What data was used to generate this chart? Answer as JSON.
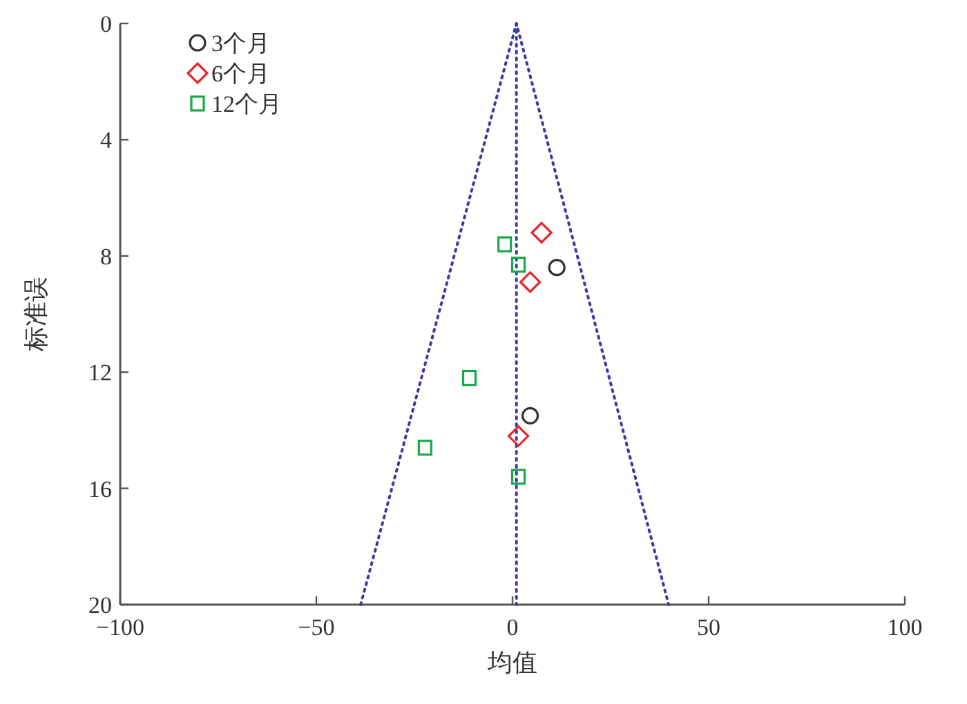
{
  "chart_data": {
    "type": "scatter",
    "xlabel": "均值",
    "ylabel": "标准误",
    "xlim": [
      -100,
      100
    ],
    "xticks": [
      {
        "value": -100,
        "label": "−100"
      },
      {
        "value": -50,
        "label": "−50"
      },
      0,
      50,
      100
    ],
    "ylim": [
      20,
      0
    ],
    "yticks": [
      0,
      4,
      8,
      12,
      16,
      20
    ],
    "grid": false,
    "legend": "top left",
    "series": [
      {
        "name": "3个月",
        "marker": "circle",
        "color": "#333333",
        "x": [
          11.3,
          4.5
        ],
        "values": [
          8.4,
          13.5
        ]
      },
      {
        "name": "6个月",
        "marker": "diamond",
        "color": "#e8262b",
        "x": [
          7.4,
          4.5,
          1.5
        ],
        "values": [
          7.2,
          8.9,
          14.2
        ]
      },
      {
        "name": "12个月",
        "marker": "square",
        "color": "#1aa84a",
        "x": [
          -2.0,
          1.5,
          -11.0,
          -22.3,
          1.5
        ],
        "values": [
          7.6,
          8.3,
          12.2,
          14.6,
          15.6
        ]
      },
      {
        "type": "line",
        "marker": "none",
        "line_style": "dotted",
        "color": "#3a3aa8",
        "x": [
          -38.7,
          1,
          39.8
        ],
        "values": [
          20,
          0,
          20
        ]
      },
      {
        "type": "line",
        "marker": "none",
        "line_style": "dotted",
        "color": "#3a3aa8",
        "x": [
          1,
          1
        ],
        "values": [
          0,
          20
        ]
      }
    ]
  }
}
